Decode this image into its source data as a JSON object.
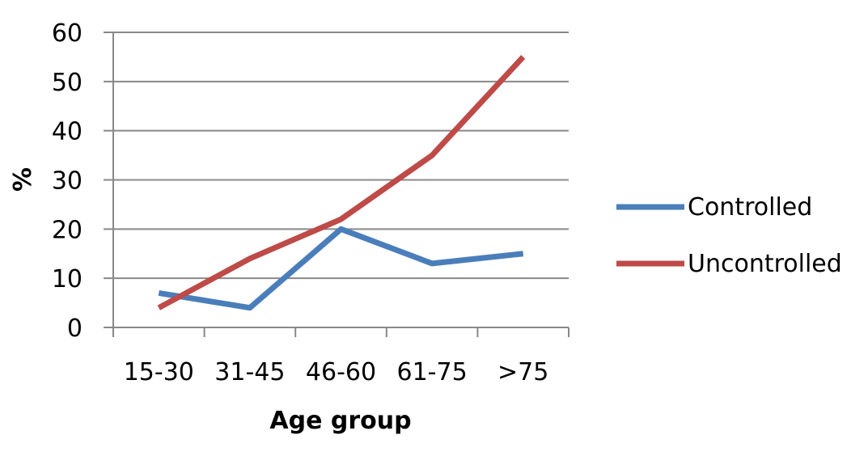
{
  "chart_data": {
    "type": "line",
    "categories": [
      "15-30",
      "31-45",
      "46-60",
      "61-75",
      ">75"
    ],
    "series": [
      {
        "name": "Controlled",
        "color": "#4a7ebb",
        "values": [
          7,
          4,
          20,
          13,
          15
        ]
      },
      {
        "name": "Uncontrolled",
        "color": "#be4b48",
        "values": [
          4,
          14,
          22,
          35,
          55
        ]
      }
    ],
    "xlabel": "Age group",
    "ylabel": "%",
    "ylim": [
      0,
      60
    ],
    "yticks": [
      0,
      10,
      20,
      30,
      40,
      50,
      60
    ],
    "grid": true,
    "legend_position": "right"
  }
}
